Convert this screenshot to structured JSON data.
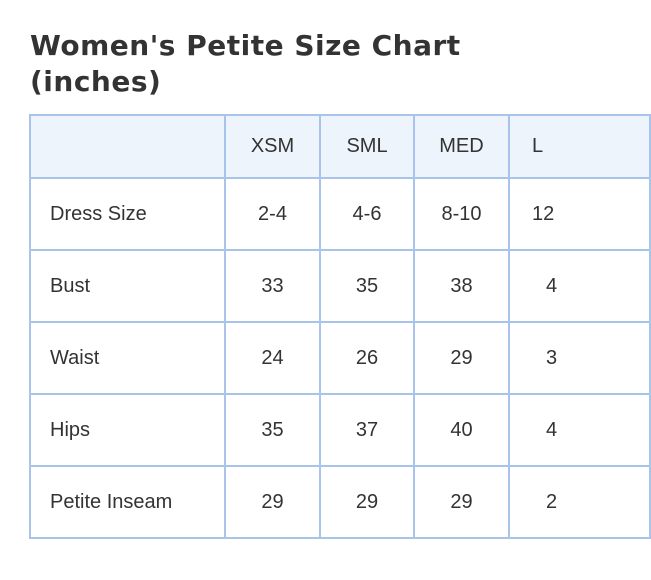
{
  "title": "Women's Petite Size Chart (inches)",
  "table": {
    "columns": [
      "XSM",
      "SML",
      "MED",
      "L"
    ],
    "rows": [
      [
        "Dress Size",
        "2-4",
        "4-6",
        "8-10",
        "12"
      ],
      [
        "Bust",
        "33",
        "35",
        "38",
        "4"
      ],
      [
        "Waist",
        "24",
        "26",
        "29",
        "3"
      ],
      [
        "Hips",
        "35",
        "37",
        "40",
        "4"
      ],
      [
        "Petite Inseam",
        "29",
        "29",
        "29",
        "2"
      ]
    ]
  }
}
